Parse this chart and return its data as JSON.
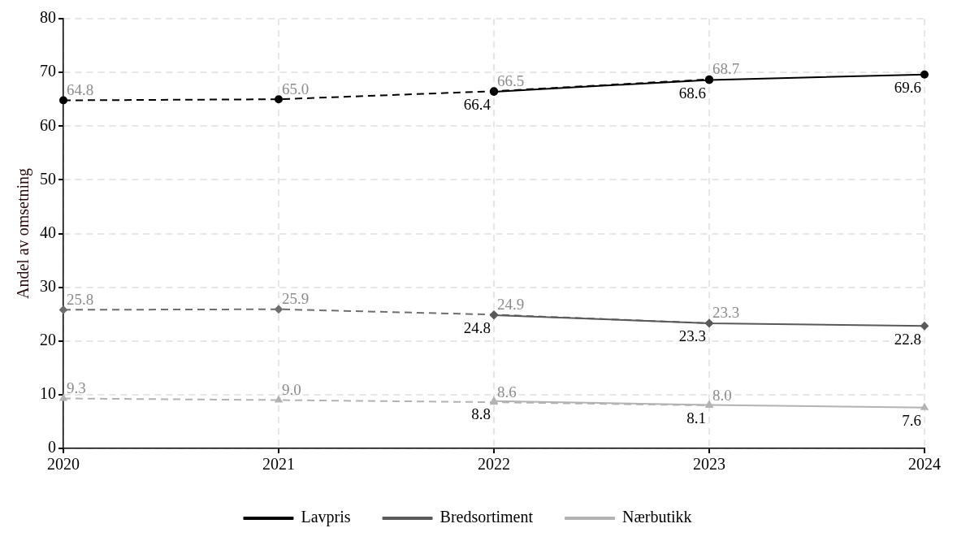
{
  "chart_data": {
    "type": "line",
    "ylabel": "Andel av omsetning",
    "categories": [
      "2020",
      "2021",
      "2022",
      "2023",
      "2024"
    ],
    "series": [
      {
        "name": "Lavpris",
        "color": "#000000",
        "values": [
          null,
          null,
          66.4,
          68.6,
          69.6
        ],
        "value_labels": [
          null,
          null,
          "66.4",
          "68.6",
          "69.6"
        ],
        "line_style": "solid",
        "marker": "circle"
      },
      {
        "name": "Bredsortiment",
        "color": "#595959",
        "values": [
          null,
          null,
          24.8,
          23.3,
          22.8
        ],
        "value_labels": [
          null,
          null,
          "24.8",
          "23.3",
          "22.8"
        ],
        "line_style": "solid",
        "marker": "diamond"
      },
      {
        "name": "Nærbutikk",
        "color": "#b3b3b3",
        "values": [
          null,
          null,
          8.8,
          8.1,
          7.6
        ],
        "value_labels": [
          null,
          null,
          "8.8",
          "8.1",
          "7.6"
        ],
        "line_style": "solid",
        "marker": "triangle"
      },
      {
        "color": "#000000",
        "values": [
          64.8,
          65.0,
          66.5,
          68.7,
          null
        ],
        "value_labels": [
          "64.8",
          "65.0",
          "66.5",
          "68.7",
          null
        ],
        "line_style": "dashed",
        "marker": "circle"
      },
      {
        "color": "#6e6e6e",
        "values": [
          25.8,
          25.9,
          24.9,
          23.3,
          null
        ],
        "value_labels": [
          "25.8",
          "25.9",
          "24.9",
          "23.3",
          null
        ],
        "line_style": "dashed",
        "marker": "diamond"
      },
      {
        "color": "#b3b3b3",
        "values": [
          9.3,
          9.0,
          8.6,
          8.0,
          null
        ],
        "value_labels": [
          "9.3",
          "9.0",
          "8.6",
          "8.0",
          null
        ],
        "line_style": "dashed",
        "marker": "triangle"
      }
    ],
    "ylim": [
      0,
      80
    ],
    "yticks": [
      0,
      10,
      20,
      30,
      40,
      50,
      60,
      70,
      80
    ],
    "grid": true,
    "legend": "bottom"
  }
}
